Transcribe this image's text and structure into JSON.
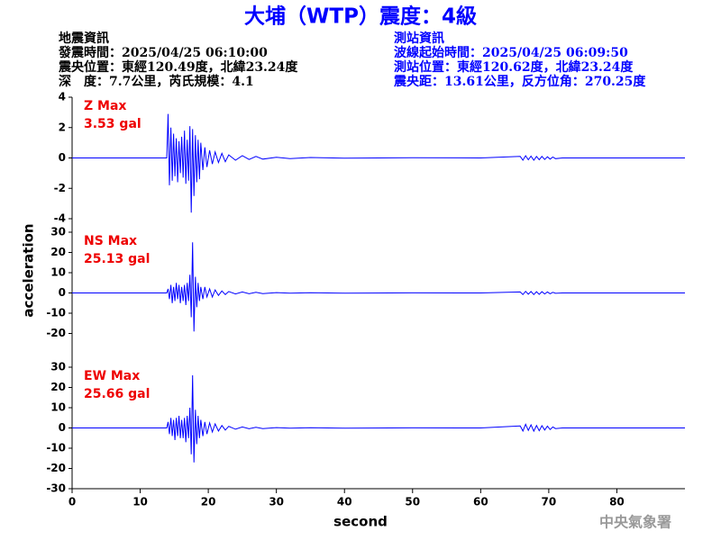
{
  "header": {
    "title": "大埔（WTP）震度：4級",
    "quake": [
      "地震資訊",
      "發震時間：2025/04/25 06:10:00",
      "震央位置：東經120.49度，北緯23.24度",
      "深　度：7.7公里，芮氏規模：4.1"
    ],
    "station": [
      "測站資訊",
      "波線起始時間：2025/04/25 06:09:50",
      "測站位置：東經120.62度，北緯23.24度",
      "震央距：13.61公里，反方位角：270.25度"
    ],
    "footer": "中央氣象署"
  },
  "chart_data": [
    {
      "type": "line",
      "annotations": [
        "Z Max",
        "3.53 gal"
      ],
      "color": "#0000ff",
      "xlim": [
        0,
        90
      ],
      "ylim": [
        -4,
        4
      ],
      "yticks": [
        4,
        2,
        0,
        -2,
        -4
      ],
      "x": [
        0,
        13.9,
        14.1,
        14.3,
        14.5,
        14.7,
        14.9,
        15.1,
        15.3,
        15.5,
        15.7,
        15.9,
        16.1,
        16.3,
        16.5,
        16.7,
        16.9,
        17.1,
        17.3,
        17.5,
        17.7,
        17.9,
        18.1,
        18.3,
        18.5,
        18.7,
        18.9,
        19.2,
        19.5,
        19.8,
        20.2,
        20.6,
        21,
        21.5,
        22,
        22.5,
        23,
        24,
        25,
        26,
        27,
        28,
        30,
        32,
        35,
        40,
        50,
        60,
        65.8,
        66.2,
        66.6,
        67,
        67.4,
        67.8,
        68.2,
        68.6,
        69,
        69.4,
        69.8,
        70.2,
        70.6,
        71,
        72,
        90
      ],
      "values": [
        0,
        0,
        2.9,
        -1.8,
        2.0,
        -1.5,
        1.6,
        -1.2,
        1.3,
        -1.6,
        1.1,
        -1.0,
        1.4,
        -1.3,
        1.8,
        -1.7,
        1.2,
        -1.5,
        2.1,
        -3.6,
        1.9,
        -2.5,
        1.5,
        -1.6,
        1.2,
        -1.4,
        1.0,
        -0.8,
        0.7,
        -0.6,
        0.5,
        -0.4,
        0.4,
        -0.3,
        0.3,
        -0.25,
        0.2,
        -0.15,
        0.15,
        -0.1,
        0.1,
        -0.08,
        0.05,
        -0.04,
        0.03,
        -0.02,
        0.01,
        0,
        0.1,
        -0.15,
        0.15,
        -0.12,
        0.12,
        -0.15,
        0.1,
        -0.12,
        0.1,
        -0.1,
        0.08,
        -0.08,
        0.06,
        -0.05,
        0,
        0
      ]
    },
    {
      "type": "line",
      "annotations": [
        "NS Max",
        "25.13 gal"
      ],
      "color": "#0000ff",
      "ylabel": "acceleration",
      "xlim": [
        0,
        90
      ],
      "ylim": [
        -30,
        30
      ],
      "yticks": [
        30,
        20,
        10,
        0,
        -10,
        -20
      ],
      "x": [
        0,
        13.9,
        14.1,
        14.3,
        14.5,
        14.7,
        14.9,
        15.1,
        15.3,
        15.5,
        15.7,
        15.9,
        16.1,
        16.3,
        16.5,
        16.7,
        16.9,
        17.1,
        17.3,
        17.5,
        17.7,
        17.9,
        18.1,
        18.3,
        18.5,
        18.7,
        18.9,
        19.2,
        19.5,
        19.8,
        20.2,
        20.6,
        21,
        21.5,
        22,
        22.5,
        23,
        24,
        25,
        26,
        27,
        28,
        30,
        32,
        35,
        40,
        50,
        60,
        65.8,
        66.2,
        66.6,
        67,
        67.4,
        67.8,
        68.2,
        68.6,
        69,
        69.4,
        69.8,
        70.2,
        70.6,
        71,
        72,
        90
      ],
      "values": [
        0,
        0,
        2,
        -3,
        4,
        -5,
        3,
        -4,
        5,
        -3,
        4,
        -5,
        3,
        -4,
        4,
        -6,
        5,
        -4,
        9,
        -12,
        25,
        -19,
        8,
        -7,
        5,
        -4,
        3,
        -3,
        3,
        -2,
        2,
        -2,
        1.5,
        -1.2,
        1,
        -0.8,
        0.7,
        -0.5,
        0.5,
        -0.4,
        0.3,
        -0.3,
        0.2,
        -0.15,
        0.1,
        -0.1,
        0.05,
        0,
        0.5,
        -0.8,
        0.8,
        -0.6,
        0.7,
        -0.8,
        0.6,
        -0.7,
        0.6,
        -0.5,
        0.5,
        -0.4,
        0.3,
        -0.2,
        0,
        0
      ]
    },
    {
      "type": "line",
      "annotations": [
        "EW Max",
        "25.66 gal"
      ],
      "color": "#0000ff",
      "xlabel": "second",
      "xlim": [
        0,
        90
      ],
      "xticks": [
        0,
        10,
        20,
        30,
        40,
        50,
        60,
        70,
        80
      ],
      "ylim": [
        -30,
        30
      ],
      "yticks": [
        30,
        20,
        10,
        0,
        -10,
        -20,
        -30
      ],
      "x": [
        0,
        13.9,
        14.1,
        14.3,
        14.5,
        14.7,
        14.9,
        15.1,
        15.3,
        15.5,
        15.7,
        15.9,
        16.1,
        16.3,
        16.5,
        16.7,
        16.9,
        17.1,
        17.3,
        17.5,
        17.7,
        17.9,
        18.1,
        18.3,
        18.5,
        18.7,
        18.9,
        19.2,
        19.5,
        19.8,
        20.2,
        20.6,
        21,
        21.5,
        22,
        22.5,
        23,
        24,
        25,
        26,
        27,
        28,
        30,
        32,
        35,
        40,
        50,
        60,
        65.8,
        66.2,
        66.6,
        67,
        67.4,
        67.8,
        68.2,
        68.6,
        69,
        69.4,
        69.8,
        70.2,
        70.6,
        71,
        72,
        90
      ],
      "values": [
        0,
        0,
        3,
        -3,
        5,
        -4,
        4,
        -6,
        5,
        -4,
        6,
        -5,
        4,
        -5,
        5,
        -7,
        6,
        -5,
        10,
        -13,
        26,
        -17,
        9,
        -8,
        6,
        -5,
        4,
        -4,
        3,
        -3,
        2.5,
        -2,
        2,
        -1.5,
        1.2,
        -1,
        0.8,
        -0.6,
        0.5,
        -0.4,
        0.3,
        -0.3,
        0.2,
        -0.15,
        0.1,
        -0.1,
        0.05,
        0,
        1,
        -1.5,
        1.8,
        -1.2,
        1.5,
        -1.6,
        1.2,
        -1.4,
        1.1,
        -1,
        0.9,
        -0.8,
        0.5,
        -0.3,
        0,
        0
      ]
    }
  ]
}
